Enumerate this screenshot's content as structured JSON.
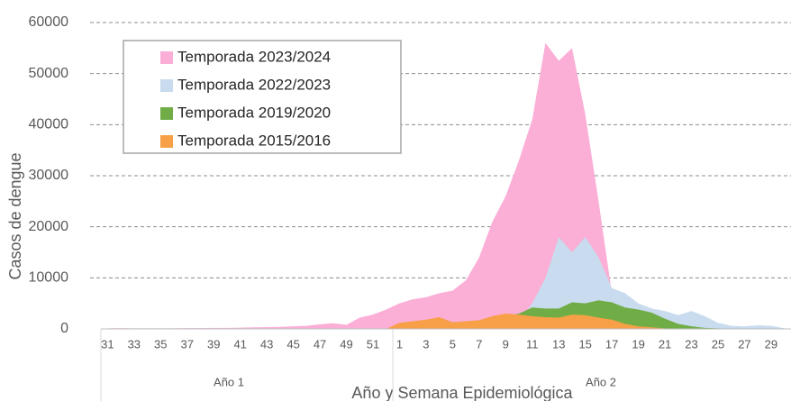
{
  "chart_data": {
    "type": "area",
    "x_label": "Año y Semana Epidemiológica",
    "y_label": "Casos de dengue",
    "categories": [
      "31",
      null,
      "33",
      null,
      "35",
      null,
      "37",
      null,
      "39",
      null,
      "41",
      null,
      "43",
      null,
      "45",
      null,
      "47",
      null,
      "49",
      null,
      "51",
      null,
      "1",
      null,
      "3",
      null,
      "5",
      null,
      "7",
      null,
      "9",
      null,
      "11",
      null,
      "13",
      null,
      "15",
      null,
      "17",
      null,
      "19",
      null,
      "21",
      null,
      "23",
      null,
      "25",
      null,
      "27",
      null,
      "29",
      null
    ],
    "x_groups": [
      {
        "label": "Año 1",
        "size": 22
      },
      {
        "label": "Año 2",
        "size": 30
      }
    ],
    "ylim": [
      0,
      60000
    ],
    "yticks": [
      0,
      10000,
      20000,
      30000,
      40000,
      50000,
      60000
    ],
    "grid": true,
    "legend": "upper left",
    "series": [
      {
        "name": "Temporada 2023/2024",
        "color": "#fbaed6",
        "values": [
          100,
          150,
          100,
          100,
          100,
          100,
          150,
          150,
          200,
          200,
          250,
          300,
          350,
          400,
          500,
          600,
          900,
          1100,
          800,
          2200,
          2800,
          3800,
          5000,
          5800,
          6200,
          7000,
          7500,
          9500,
          14000,
          21000,
          26000,
          33000,
          41000,
          56000,
          52500,
          55000,
          42000,
          25000,
          7000,
          null,
          null,
          null,
          null,
          null,
          null,
          null,
          null,
          null,
          null,
          null,
          null,
          null
        ]
      },
      {
        "name": "Temporada 2022/2023",
        "color": "#c9dbee",
        "values": [
          100,
          100,
          100,
          100,
          100,
          100,
          100,
          100,
          100,
          100,
          100,
          100,
          100,
          100,
          100,
          100,
          100,
          100,
          100,
          100,
          100,
          100,
          300,
          300,
          400,
          400,
          500,
          500,
          600,
          700,
          800,
          1500,
          5000,
          10000,
          18000,
          15000,
          18000,
          14000,
          8000,
          7000,
          5000,
          4000,
          3500,
          2700,
          3500,
          2500,
          1200,
          600,
          500,
          700,
          600,
          100
        ]
      },
      {
        "name": "Temporada 2019/2020",
        "color": "#70ad47",
        "values": [
          null,
          null,
          null,
          null,
          null,
          null,
          null,
          null,
          null,
          null,
          null,
          null,
          null,
          null,
          null,
          null,
          null,
          null,
          null,
          null,
          null,
          null,
          200,
          200,
          300,
          300,
          400,
          500,
          800,
          1500,
          2500,
          3000,
          4200,
          4000,
          4000,
          5200,
          5000,
          5600,
          5200,
          4200,
          3800,
          3200,
          2000,
          1000,
          500,
          200,
          100,
          50,
          50,
          50,
          50,
          50
        ]
      },
      {
        "name": "Temporada 2015/2016",
        "color": "#f7a047",
        "values": [
          null,
          null,
          null,
          null,
          null,
          null,
          null,
          null,
          null,
          null,
          null,
          null,
          null,
          null,
          null,
          null,
          null,
          null,
          null,
          null,
          null,
          0,
          1200,
          1500,
          1800,
          2300,
          1300,
          1500,
          1700,
          2500,
          3000,
          2800,
          2500,
          2300,
          2200,
          2800,
          2700,
          2200,
          1800,
          1000,
          500,
          300,
          100,
          null,
          null,
          null,
          null,
          null,
          null,
          null,
          null,
          null
        ]
      }
    ]
  }
}
